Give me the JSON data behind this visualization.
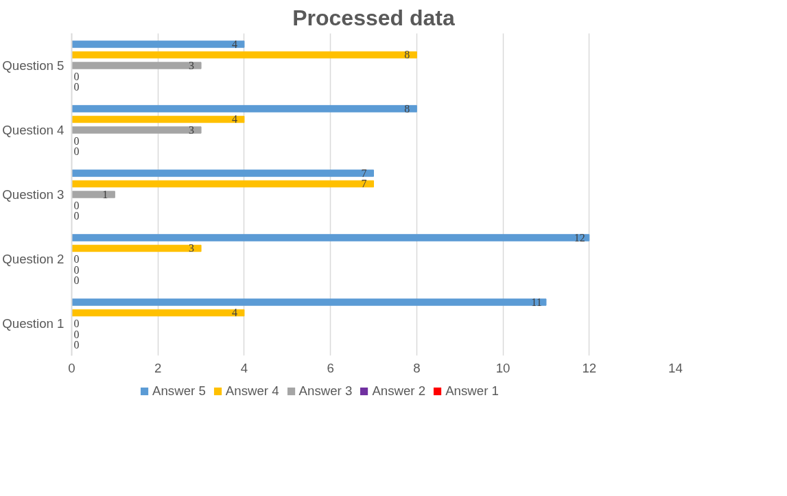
{
  "chart_data": {
    "type": "bar",
    "orientation": "horizontal",
    "title": "Processed data",
    "categories": [
      "Question 5",
      "Question 4",
      "Question 3",
      "Question 2",
      "Question 1"
    ],
    "series": [
      {
        "name": "Answer 5",
        "color": "#5b9bd5",
        "values": [
          4,
          8,
          7,
          12,
          11
        ]
      },
      {
        "name": "Answer 4",
        "color": "#ffc000",
        "values": [
          8,
          4,
          7,
          3,
          4
        ]
      },
      {
        "name": "Answer 3",
        "color": "#a5a5a5",
        "values": [
          3,
          3,
          1,
          0,
          0
        ]
      },
      {
        "name": "Answer 2",
        "color": "#7030a0",
        "values": [
          0,
          0,
          0,
          0,
          0
        ]
      },
      {
        "name": "Answer 1",
        "color": "#ff0000",
        "values": [
          0,
          0,
          0,
          0,
          0
        ]
      }
    ],
    "xlim": [
      0,
      14
    ],
    "xticks": [
      0,
      2,
      4,
      6,
      8,
      10,
      12,
      14
    ],
    "grid": "x",
    "legend": "bottom",
    "data_labels": true
  }
}
